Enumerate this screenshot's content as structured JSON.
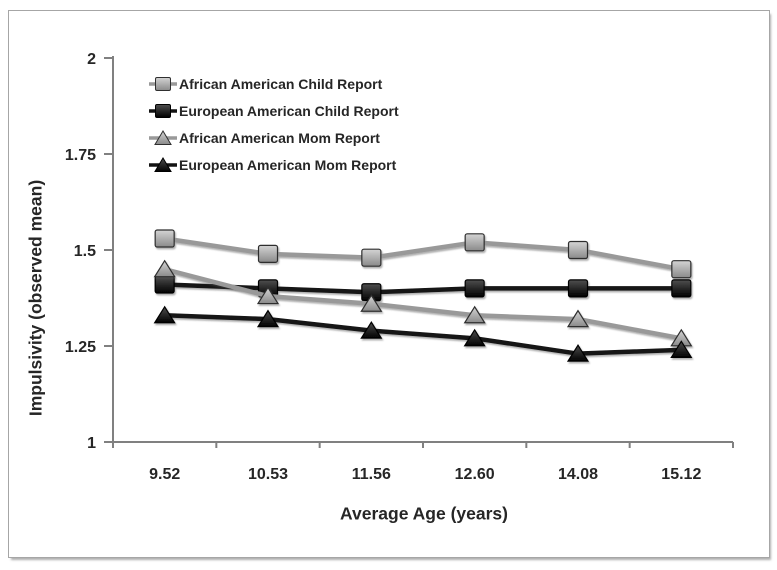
{
  "chart_data": {
    "type": "line",
    "title": "",
    "xlabel": "Average Age (years)",
    "ylabel": "Impulsivity (observed mean)",
    "categories": [
      "9.52",
      "10.53",
      "11.56",
      "12.60",
      "14.08",
      "15.12"
    ],
    "ylim": [
      1,
      2
    ],
    "y_ticks": [
      "2",
      "1.75",
      "1.5",
      "1.25",
      "1"
    ],
    "grid": "off",
    "legend_position": "inside-top-left",
    "axis_color": "#808080",
    "text_color": "#262626",
    "series": [
      {
        "name": "African American Child Report",
        "marker": "square",
        "shade": "gray",
        "color": "#999999",
        "values": [
          1.53,
          1.49,
          1.48,
          1.52,
          1.5,
          1.45
        ]
      },
      {
        "name": "European American Child Report",
        "marker": "square",
        "shade": "black",
        "color": "#121212",
        "values": [
          1.41,
          1.4,
          1.39,
          1.4,
          1.4,
          1.4
        ]
      },
      {
        "name": "African American Mom Report",
        "marker": "triangle",
        "shade": "gray",
        "color": "#999999",
        "values": [
          1.45,
          1.38,
          1.36,
          1.33,
          1.32,
          1.27
        ]
      },
      {
        "name": "European American Mom Report",
        "marker": "triangle",
        "shade": "black",
        "color": "#121212",
        "values": [
          1.33,
          1.32,
          1.29,
          1.27,
          1.23,
          1.24
        ]
      }
    ]
  }
}
